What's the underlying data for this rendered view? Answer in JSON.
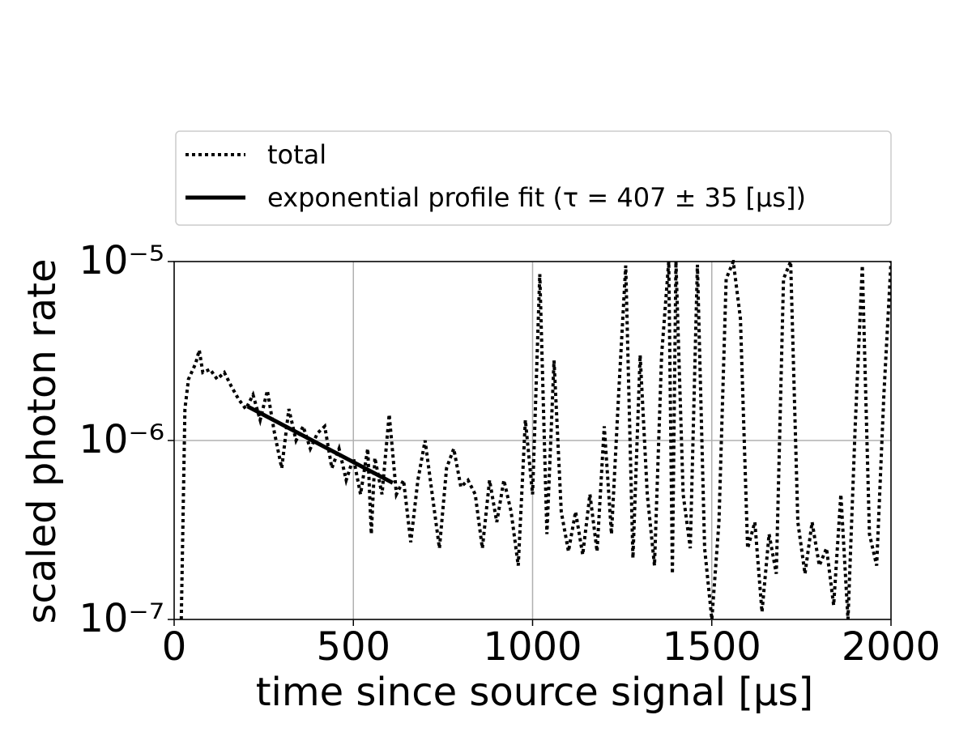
{
  "chart_data": {
    "type": "line",
    "xlabel": "time since source signal [μs]",
    "ylabel": "scaled photon rate",
    "xlim": [
      0,
      2000
    ],
    "xticks": [
      0,
      500,
      1000,
      1500,
      2000
    ],
    "ylim": [
      1e-07,
      1e-05
    ],
    "yscale": "log",
    "yticks": [
      {
        "value": 1e-07,
        "label": "10⁻⁷"
      },
      {
        "value": 1e-06,
        "label": "10⁻⁶"
      },
      {
        "value": 1e-05,
        "label": "10⁻⁵"
      }
    ],
    "grid": true,
    "legend": "top",
    "series": [
      {
        "name": "total",
        "color": "#000000",
        "style": "dotted",
        "x": [
          20,
          30,
          40,
          60,
          70,
          80,
          100,
          120,
          140,
          160,
          180,
          200,
          220,
          240,
          260,
          280,
          300,
          320,
          340,
          360,
          380,
          400,
          420,
          440,
          460,
          480,
          500,
          520,
          540,
          550,
          560,
          580,
          600,
          620,
          640,
          660,
          680,
          700,
          720,
          740,
          760,
          780,
          800,
          820,
          840,
          860,
          880,
          900,
          920,
          940,
          960,
          980,
          1000,
          1020,
          1040,
          1060,
          1080,
          1100,
          1120,
          1140,
          1160,
          1180,
          1200,
          1220,
          1240,
          1260,
          1280,
          1300,
          1320,
          1340,
          1360,
          1380,
          1390,
          1400,
          1420,
          1440,
          1460,
          1480,
          1500,
          1520,
          1540,
          1560,
          1580,
          1600,
          1620,
          1640,
          1660,
          1680,
          1700,
          1720,
          1740,
          1760,
          1780,
          1800,
          1820,
          1840,
          1860,
          1880,
          1900,
          1920,
          1940,
          1960,
          1980,
          2000
        ],
        "values": [
          1e-07,
          1.5e-06,
          2.2e-06,
          2.7e-06,
          3.2e-06,
          2.4e-06,
          2.5e-06,
          2.2e-06,
          2.4e-06,
          2e-06,
          1.7e-06,
          1.5e-06,
          1.8e-06,
          1.3e-06,
          1.9e-06,
          1.1e-06,
          7e-07,
          1.5e-06,
          1e-06,
          1.2e-06,
          9e-07,
          1.1e-06,
          1.2e-06,
          7e-07,
          9e-07,
          6e-07,
          8e-07,
          5e-07,
          9e-07,
          3e-07,
          8e-07,
          5e-07,
          1.4e-06,
          5e-07,
          6e-07,
          2.7e-07,
          6e-07,
          1e-06,
          5e-07,
          2.5e-07,
          7e-07,
          9e-07,
          5.5e-07,
          6e-07,
          5e-07,
          2.5e-07,
          6e-07,
          3.5e-07,
          6e-07,
          4e-07,
          2e-07,
          1.3e-06,
          5e-07,
          8.5e-06,
          3e-07,
          2.8e-06,
          4e-07,
          2.4e-07,
          4e-07,
          2.3e-07,
          5e-07,
          2.4e-07,
          1.2e-06,
          3e-07,
          1.8e-06,
          9.5e-06,
          2.2e-07,
          3e-06,
          5e-07,
          2e-07,
          3e-06,
          1e-05,
          1.8e-07,
          1e-05,
          5e-07,
          2.5e-07,
          9.6e-06,
          2.5e-07,
          1e-07,
          3.5e-07,
          8e-06,
          1e-05,
          4.8e-06,
          2.5e-07,
          3.5e-07,
          1.1e-07,
          3e-07,
          1.8e-07,
          8e-06,
          1e-05,
          3.5e-07,
          1.8e-07,
          3.5e-07,
          2e-07,
          2.5e-07,
          1.2e-07,
          5e-07,
          1e-07,
          1.2e-06,
          9.5e-06,
          3e-07,
          2e-07,
          1.8e-06,
          1e-05
        ]
      },
      {
        "name": "exponential profile fit (τ = 407 ± 35 [μs])",
        "color": "#000000",
        "style": "solid",
        "x": [
          205,
          610
        ],
        "values": [
          1.55e-06,
          5.8e-07
        ]
      }
    ]
  }
}
